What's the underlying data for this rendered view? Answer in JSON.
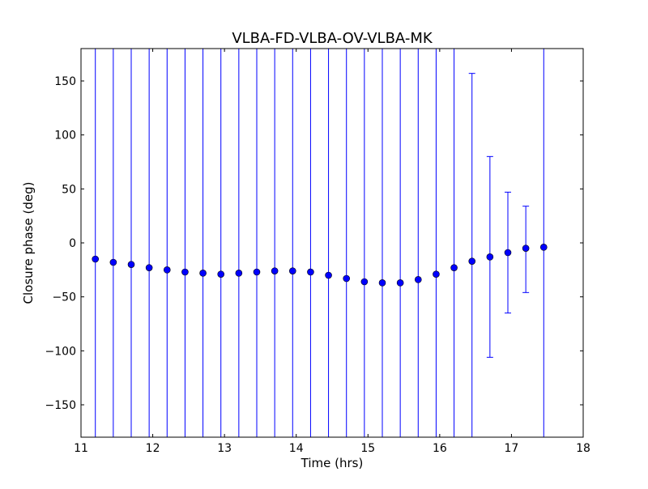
{
  "chart_data": {
    "type": "scatter",
    "title": "VLBA-FD-VLBA-OV-VLBA-MK",
    "xlabel": "Time (hrs)",
    "ylabel": "Closure phase (deg)",
    "xlim": [
      11,
      18
    ],
    "ylim": [
      -180,
      180
    ],
    "xticks": [
      11,
      12,
      13,
      14,
      15,
      16,
      17,
      18
    ],
    "yticks": [
      -150,
      -100,
      -50,
      0,
      50,
      100,
      150
    ],
    "xtick_labels": [
      "11",
      "12",
      "13",
      "14",
      "15",
      "16",
      "17",
      "18"
    ],
    "ytick_labels": [
      "−150",
      "−100",
      "−50",
      "0",
      "50",
      "100",
      "150"
    ],
    "grid": false,
    "colors": {
      "marker": "#0000ff",
      "errorbar": "#0000ff",
      "axes": "#000000"
    },
    "series": [
      {
        "marker": "circle",
        "x": [
          11.2,
          11.45,
          11.7,
          11.95,
          12.2,
          12.45,
          12.7,
          12.95,
          13.2,
          13.45,
          13.7,
          13.95,
          14.2,
          14.45,
          14.7,
          14.95,
          15.2,
          15.45,
          15.7,
          15.95,
          16.2,
          16.45,
          16.7,
          16.95,
          17.2,
          17.45
        ],
        "y": [
          -15,
          -18,
          -20,
          -23,
          -25,
          -27,
          -28,
          -29,
          -28,
          -27,
          -26,
          -26,
          -27,
          -30,
          -33,
          -36,
          -37,
          -37,
          -34,
          -29,
          -23,
          -17,
          -13,
          -9,
          -5,
          -4
        ],
        "yerr_low": [
          null,
          null,
          null,
          null,
          null,
          null,
          null,
          null,
          null,
          null,
          null,
          null,
          null,
          null,
          null,
          null,
          null,
          null,
          null,
          null,
          null,
          -180,
          -106,
          -65,
          -46,
          -180
        ],
        "yerr_high": [
          null,
          null,
          null,
          null,
          null,
          null,
          null,
          null,
          null,
          null,
          null,
          null,
          null,
          null,
          null,
          null,
          null,
          null,
          null,
          null,
          null,
          157,
          80,
          47,
          34,
          180
        ]
      }
    ]
  }
}
